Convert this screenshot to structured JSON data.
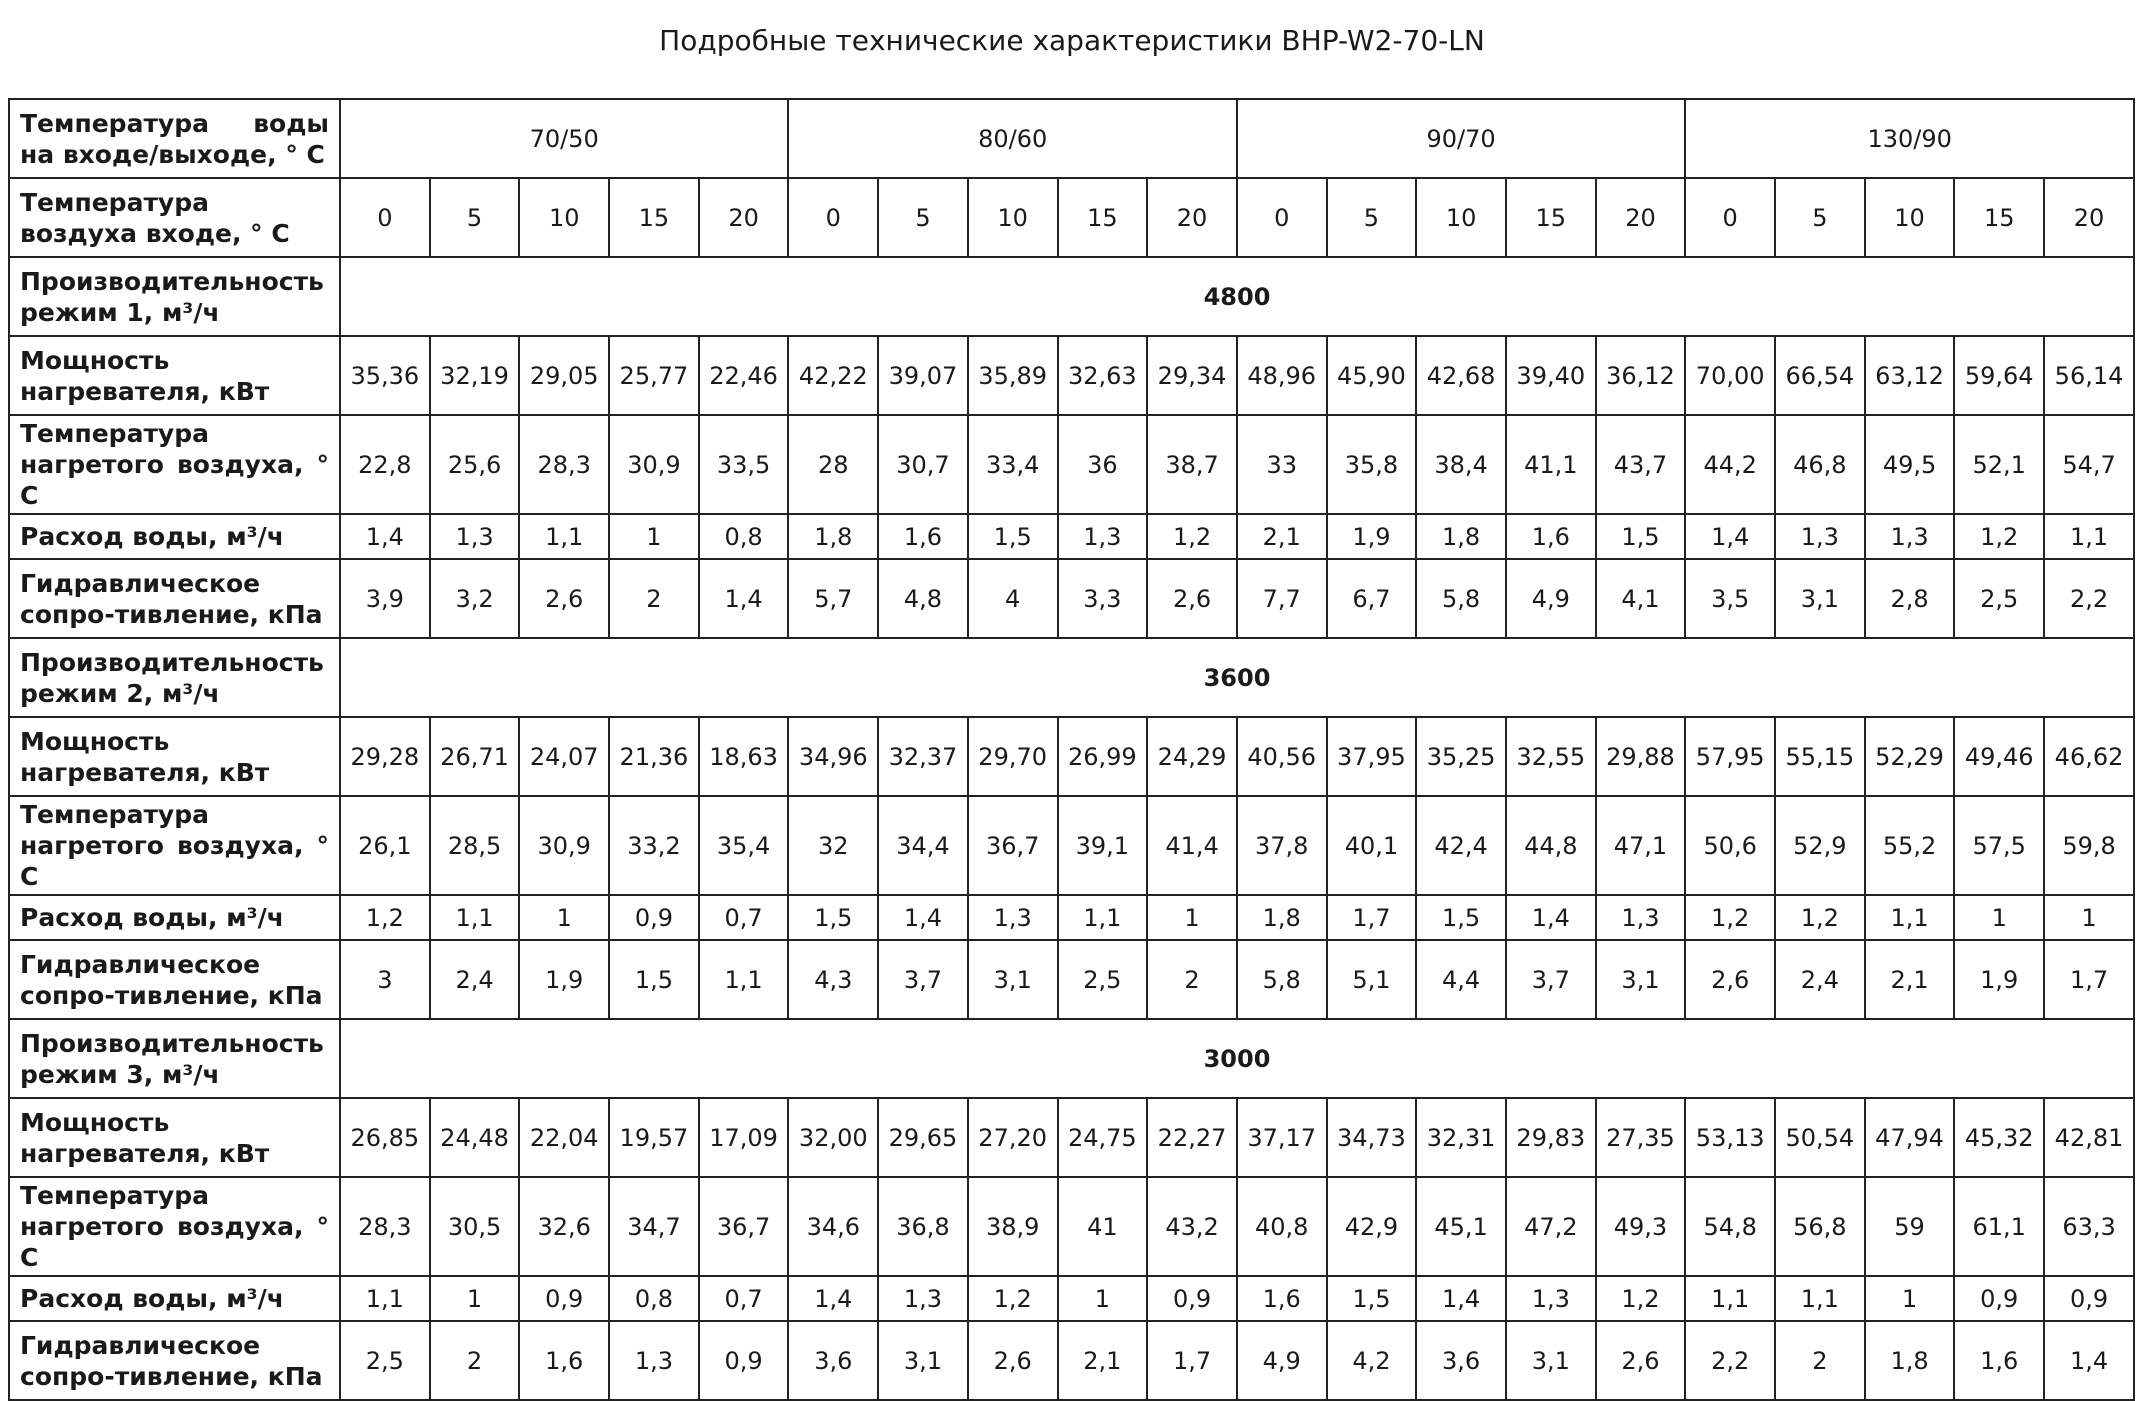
{
  "title": "Подробные технические характеристики BHP-W2-70-LN",
  "table": {
    "water_temp_label": "Температура воды на входе/выходе, ° С",
    "water_temps": [
      "70/50",
      "80/60",
      "90/70",
      "130/90"
    ],
    "air_temp_label": "Температура воздуха входе, ° С",
    "air_temps": [
      "0",
      "5",
      "10",
      "15",
      "20",
      "0",
      "5",
      "10",
      "15",
      "20",
      "0",
      "5",
      "10",
      "15",
      "20",
      "0",
      "5",
      "10",
      "15",
      "20"
    ],
    "modes": [
      {
        "label": "Производительность режим 1, м³/ч",
        "flow": "4800",
        "rows": [
          {
            "label": "Мощность нагревателя, кВт",
            "values": [
              "35,36",
              "32,19",
              "29,05",
              "25,77",
              "22,46",
              "42,22",
              "39,07",
              "35,89",
              "32,63",
              "29,34",
              "48,96",
              "45,90",
              "42,68",
              "39,40",
              "36,12",
              "70,00",
              "66,54",
              "63,12",
              "59,64",
              "56,14"
            ]
          },
          {
            "label": "Температура нагретого воздуха, ° С",
            "values": [
              "22,8",
              "25,6",
              "28,3",
              "30,9",
              "33,5",
              "28",
              "30,7",
              "33,4",
              "36",
              "38,7",
              "33",
              "35,8",
              "38,4",
              "41,1",
              "43,7",
              "44,2",
              "46,8",
              "49,5",
              "52,1",
              "54,7"
            ]
          },
          {
            "label": "Расход воды, м³/ч",
            "values": [
              "1,4",
              "1,3",
              "1,1",
              "1",
              "0,8",
              "1,8",
              "1,6",
              "1,5",
              "1,3",
              "1,2",
              "2,1",
              "1,9",
              "1,8",
              "1,6",
              "1,5",
              "1,4",
              "1,3",
              "1,3",
              "1,2",
              "1,1"
            ]
          },
          {
            "label": "Гидравлическое сопро-тивление, кПа",
            "values": [
              "3,9",
              "3,2",
              "2,6",
              "2",
              "1,4",
              "5,7",
              "4,8",
              "4",
              "3,3",
              "2,6",
              "7,7",
              "6,7",
              "5,8",
              "4,9",
              "4,1",
              "3,5",
              "3,1",
              "2,8",
              "2,5",
              "2,2"
            ]
          }
        ]
      },
      {
        "label": "Производительность режим 2, м³/ч",
        "flow": "3600",
        "rows": [
          {
            "label": "Мощность нагревателя, кВт",
            "values": [
              "29,28",
              "26,71",
              "24,07",
              "21,36",
              "18,63",
              "34,96",
              "32,37",
              "29,70",
              "26,99",
              "24,29",
              "40,56",
              "37,95",
              "35,25",
              "32,55",
              "29,88",
              "57,95",
              "55,15",
              "52,29",
              "49,46",
              "46,62"
            ]
          },
          {
            "label": "Температура нагретого воздуха, ° С",
            "values": [
              "26,1",
              "28,5",
              "30,9",
              "33,2",
              "35,4",
              "32",
              "34,4",
              "36,7",
              "39,1",
              "41,4",
              "37,8",
              "40,1",
              "42,4",
              "44,8",
              "47,1",
              "50,6",
              "52,9",
              "55,2",
              "57,5",
              "59,8"
            ]
          },
          {
            "label": "Расход воды, м³/ч",
            "values": [
              "1,2",
              "1,1",
              "1",
              "0,9",
              "0,7",
              "1,5",
              "1,4",
              "1,3",
              "1,1",
              "1",
              "1,8",
              "1,7",
              "1,5",
              "1,4",
              "1,3",
              "1,2",
              "1,2",
              "1,1",
              "1",
              "1"
            ]
          },
          {
            "label": "Гидравлическое сопро-тивление, кПа",
            "values": [
              "3",
              "2,4",
              "1,9",
              "1,5",
              "1,1",
              "4,3",
              "3,7",
              "3,1",
              "2,5",
              "2",
              "5,8",
              "5,1",
              "4,4",
              "3,7",
              "3,1",
              "2,6",
              "2,4",
              "2,1",
              "1,9",
              "1,7"
            ]
          }
        ]
      },
      {
        "label": "Производительность режим 3, м³/ч",
        "flow": "3000",
        "rows": [
          {
            "label": "Мощность нагревателя, кВт",
            "values": [
              "26,85",
              "24,48",
              "22,04",
              "19,57",
              "17,09",
              "32,00",
              "29,65",
              "27,20",
              "24,75",
              "22,27",
              "37,17",
              "34,73",
              "32,31",
              "29,83",
              "27,35",
              "53,13",
              "50,54",
              "47,94",
              "45,32",
              "42,81"
            ]
          },
          {
            "label": "Температура нагретого воздуха, ° С",
            "values": [
              "28,3",
              "30,5",
              "32,6",
              "34,7",
              "36,7",
              "34,6",
              "36,8",
              "38,9",
              "41",
              "43,2",
              "40,8",
              "42,9",
              "45,1",
              "47,2",
              "49,3",
              "54,8",
              "56,8",
              "59",
              "61,1",
              "63,3"
            ]
          },
          {
            "label": "Расход воды, м³/ч",
            "values": [
              "1,1",
              "1",
              "0,9",
              "0,8",
              "0,7",
              "1,4",
              "1,3",
              "1,2",
              "1",
              "0,9",
              "1,6",
              "1,5",
              "1,4",
              "1,3",
              "1,2",
              "1,1",
              "1,1",
              "1",
              "0,9",
              "0,9"
            ]
          },
          {
            "label": "Гидравлическое сопро-тивление, кПа",
            "values": [
              "2,5",
              "2",
              "1,6",
              "1,3",
              "0,9",
              "3,6",
              "3,1",
              "2,6",
              "2,1",
              "1,7",
              "4,9",
              "4,2",
              "3,6",
              "3,1",
              "2,6",
              "2,2",
              "2",
              "1,8",
              "1,6",
              "1,4"
            ]
          }
        ]
      }
    ]
  }
}
